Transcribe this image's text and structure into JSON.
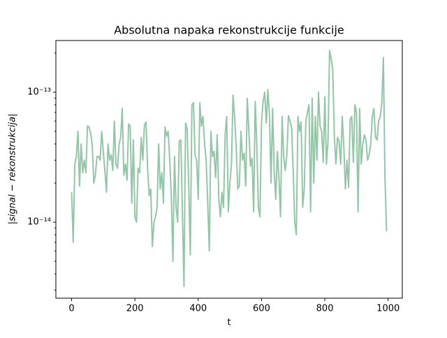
{
  "chart_data": {
    "type": "line",
    "title": "Absolutna napaka rekonstrukcije funkcije",
    "xlabel": "t",
    "ylabel": "|signal − rekonstrukcija|",
    "yscale": "log",
    "xlim": [
      -49.75,
      1044.75
    ],
    "ylim": [
      2.6e-15,
      2.5e-13
    ],
    "xticks": [
      0,
      200,
      400,
      600,
      800,
      1000
    ],
    "yticks": [
      {
        "value": 1e-14,
        "label": "10⁻¹⁴"
      },
      {
        "value": 1e-13,
        "label": "10⁻¹³"
      }
    ],
    "yminorticks": [
      3e-15,
      4e-15,
      5e-15,
      6e-15,
      7e-15,
      8e-15,
      9e-15,
      2e-14,
      3e-14,
      4e-14,
      5e-14,
      6e-14,
      7e-14,
      8e-14,
      9e-14,
      2e-13
    ],
    "series": [
      {
        "color": "#93c6a7",
        "x": [
          0,
          5,
          10,
          15,
          20,
          25,
          30,
          35,
          40,
          45,
          50,
          55,
          60,
          65,
          70,
          75,
          80,
          85,
          90,
          95,
          100,
          105,
          110,
          115,
          120,
          125,
          130,
          135,
          140,
          145,
          150,
          155,
          160,
          165,
          170,
          175,
          180,
          185,
          190,
          195,
          200,
          205,
          210,
          215,
          220,
          225,
          230,
          235,
          240,
          245,
          250,
          255,
          260,
          265,
          270,
          275,
          280,
          285,
          290,
          295,
          300,
          305,
          310,
          315,
          320,
          325,
          330,
          335,
          340,
          345,
          350,
          355,
          360,
          365,
          370,
          375,
          380,
          385,
          390,
          395,
          400,
          405,
          410,
          415,
          420,
          425,
          430,
          435,
          440,
          445,
          450,
          455,
          460,
          465,
          470,
          475,
          480,
          485,
          490,
          495,
          500,
          505,
          510,
          515,
          520,
          525,
          530,
          535,
          540,
          545,
          550,
          555,
          560,
          565,
          570,
          575,
          580,
          585,
          590,
          595,
          600,
          605,
          610,
          615,
          620,
          625,
          630,
          635,
          640,
          645,
          650,
          655,
          660,
          665,
          670,
          675,
          680,
          685,
          690,
          695,
          700,
          705,
          710,
          715,
          720,
          725,
          730,
          735,
          740,
          745,
          750,
          755,
          760,
          765,
          770,
          775,
          780,
          785,
          790,
          795,
          800,
          805,
          810,
          815,
          820,
          825,
          830,
          835,
          840,
          845,
          850,
          855,
          860,
          865,
          870,
          875,
          880,
          885,
          890,
          895,
          900,
          905,
          910,
          915,
          920,
          925,
          930,
          935,
          940,
          945,
          950,
          955,
          960,
          965,
          970,
          975,
          980,
          985,
          990,
          995
        ],
        "values": [
          1.7e-14,
          7e-15,
          2.8e-14,
          3.2e-14,
          5e-14,
          1.9e-14,
          4e-14,
          2.4e-14,
          3e-14,
          2.4e-14,
          5.5e-14,
          5.4e-14,
          4.8e-14,
          4e-14,
          2e-14,
          2.3e-14,
          3.2e-14,
          3.2e-14,
          3e-14,
          5e-14,
          3.5e-14,
          2.5e-14,
          1.7e-14,
          4e-14,
          3e-14,
          3.3e-14,
          2.5e-14,
          6e-14,
          2.8e-14,
          2.6e-14,
          4e-14,
          4.5e-14,
          7.5e-14,
          2.3e-14,
          2.8e-14,
          2.1e-14,
          5.7e-14,
          5.5e-14,
          1.4e-14,
          4.3e-14,
          1.1e-14,
          1e-14,
          2.6e-14,
          2.4e-14,
          4.5e-14,
          3e-14,
          5.6e-14,
          5.9e-14,
          2.6e-14,
          1.6e-14,
          1.8e-14,
          6.5e-15,
          1e-14,
          1.1e-14,
          1.3e-14,
          4e-14,
          1.8e-14,
          2.4e-14,
          1.4e-14,
          5.4e-14,
          4.6e-14,
          5e-14,
          3e-14,
          1.6e-14,
          5e-15,
          3.2e-14,
          1.3e-14,
          1e-14,
          4.2e-14,
          4.3e-14,
          1.2e-14,
          3.2e-15,
          5.8e-14,
          5.2e-14,
          1.9e-14,
          5.6e-15,
          8e-14,
          8.3e-14,
          3.3e-14,
          3e-14,
          1.5e-14,
          8.3e-14,
          5.5e-14,
          6.5e-14,
          4e-14,
          3e-14,
          1.4e-14,
          6e-15,
          5e-14,
          3.2e-14,
          3.5e-14,
          2.2e-14,
          4.7e-14,
          1.5e-14,
          1.1e-14,
          1.7e-14,
          1.3e-14,
          4.7e-14,
          6.5e-14,
          1.2e-14,
          2e-14,
          2.8e-14,
          9.5e-14,
          6.5e-14,
          3.7e-14,
          1.8e-14,
          1.9e-14,
          5e-14,
          3e-14,
          3.4e-14,
          1.9e-14,
          9e-14,
          5e-14,
          2.7e-14,
          3.1e-14,
          1.2e-14,
          8.5e-14,
          4e-14,
          1.3e-14,
          1.1e-14,
          6e-14,
          8.5e-14,
          1e-13,
          5.8e-14,
          1.05e-13,
          6.6e-14,
          2e-14,
          7.5e-14,
          2.5e-14,
          1.5e-14,
          3.5e-14,
          2.2e-14,
          1.1e-14,
          6.5e-14,
          3.2e-14,
          2.5e-14,
          3.3e-14,
          6.6e-14,
          6e-14,
          5.3e-14,
          2.5e-14,
          1e-14,
          8e-15,
          6.5e-14,
          5e-14,
          5.9e-14,
          1.3e-14,
          1.8e-14,
          6e-14,
          7e-14,
          8e-14,
          1.2e-14,
          9e-14,
          2e-14,
          6.5e-14,
          3e-14,
          1e-13,
          5.5e-14,
          5e-14,
          2.9e-14,
          9.2e-14,
          2.8e-14,
          4.2e-14,
          2.1e-13,
          1.8e-13,
          1.5e-13,
          4.6e-14,
          2.8e-14,
          4.5e-14,
          4.2e-14,
          2.8e-14,
          6.5e-14,
          3.8e-14,
          1.8e-14,
          3e-14,
          1.85e-14,
          6.2e-14,
          6.5e-14,
          2.9e-14,
          8e-14,
          7e-14,
          1.2e-14,
          7.5e-14,
          2.8e-14,
          4e-14,
          4.7e-14,
          4.3e-14,
          3e-14,
          3.3e-14,
          4e-14,
          6.5e-14,
          7.5e-14,
          4.5e-14,
          4.3e-14,
          6e-14,
          6.5e-14,
          8.3e-14,
          1.85e-13,
          2.2e-14,
          8.5e-15
        ]
      }
    ]
  }
}
